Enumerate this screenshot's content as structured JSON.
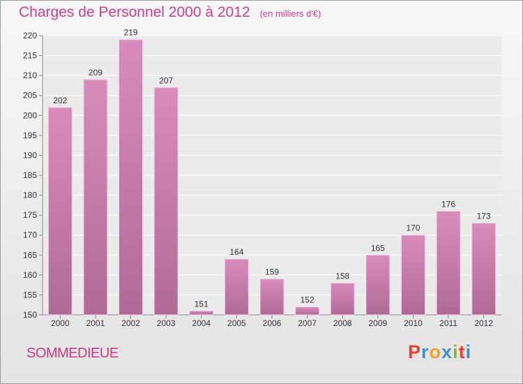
{
  "chart_data": {
    "type": "bar",
    "title": "Charges de Personnel 2000 à 2012",
    "subtitle": "(en milliers d'€)",
    "categories": [
      "2000",
      "2001",
      "2002",
      "2003",
      "2004",
      "2005",
      "2006",
      "2007",
      "2008",
      "2009",
      "2010",
      "2011",
      "2012"
    ],
    "values": [
      202,
      209,
      219,
      207,
      151,
      164,
      159,
      152,
      158,
      165,
      170,
      176,
      173
    ],
    "ylim": [
      150,
      220
    ],
    "yticks": [
      150,
      155,
      160,
      165,
      170,
      175,
      180,
      185,
      190,
      195,
      200,
      205,
      210,
      215,
      220
    ],
    "grid": true,
    "bar_color": "#d98cbc"
  },
  "footer": {
    "commune": "SOMMEDIEUE",
    "brand": "Proxiti",
    "brand_colors": [
      "#e8412e",
      "#3a8fd6",
      "#f3a21d",
      "#3a8fd6",
      "#7dbb3a",
      "#e8412e",
      "#3a8fd6"
    ]
  }
}
